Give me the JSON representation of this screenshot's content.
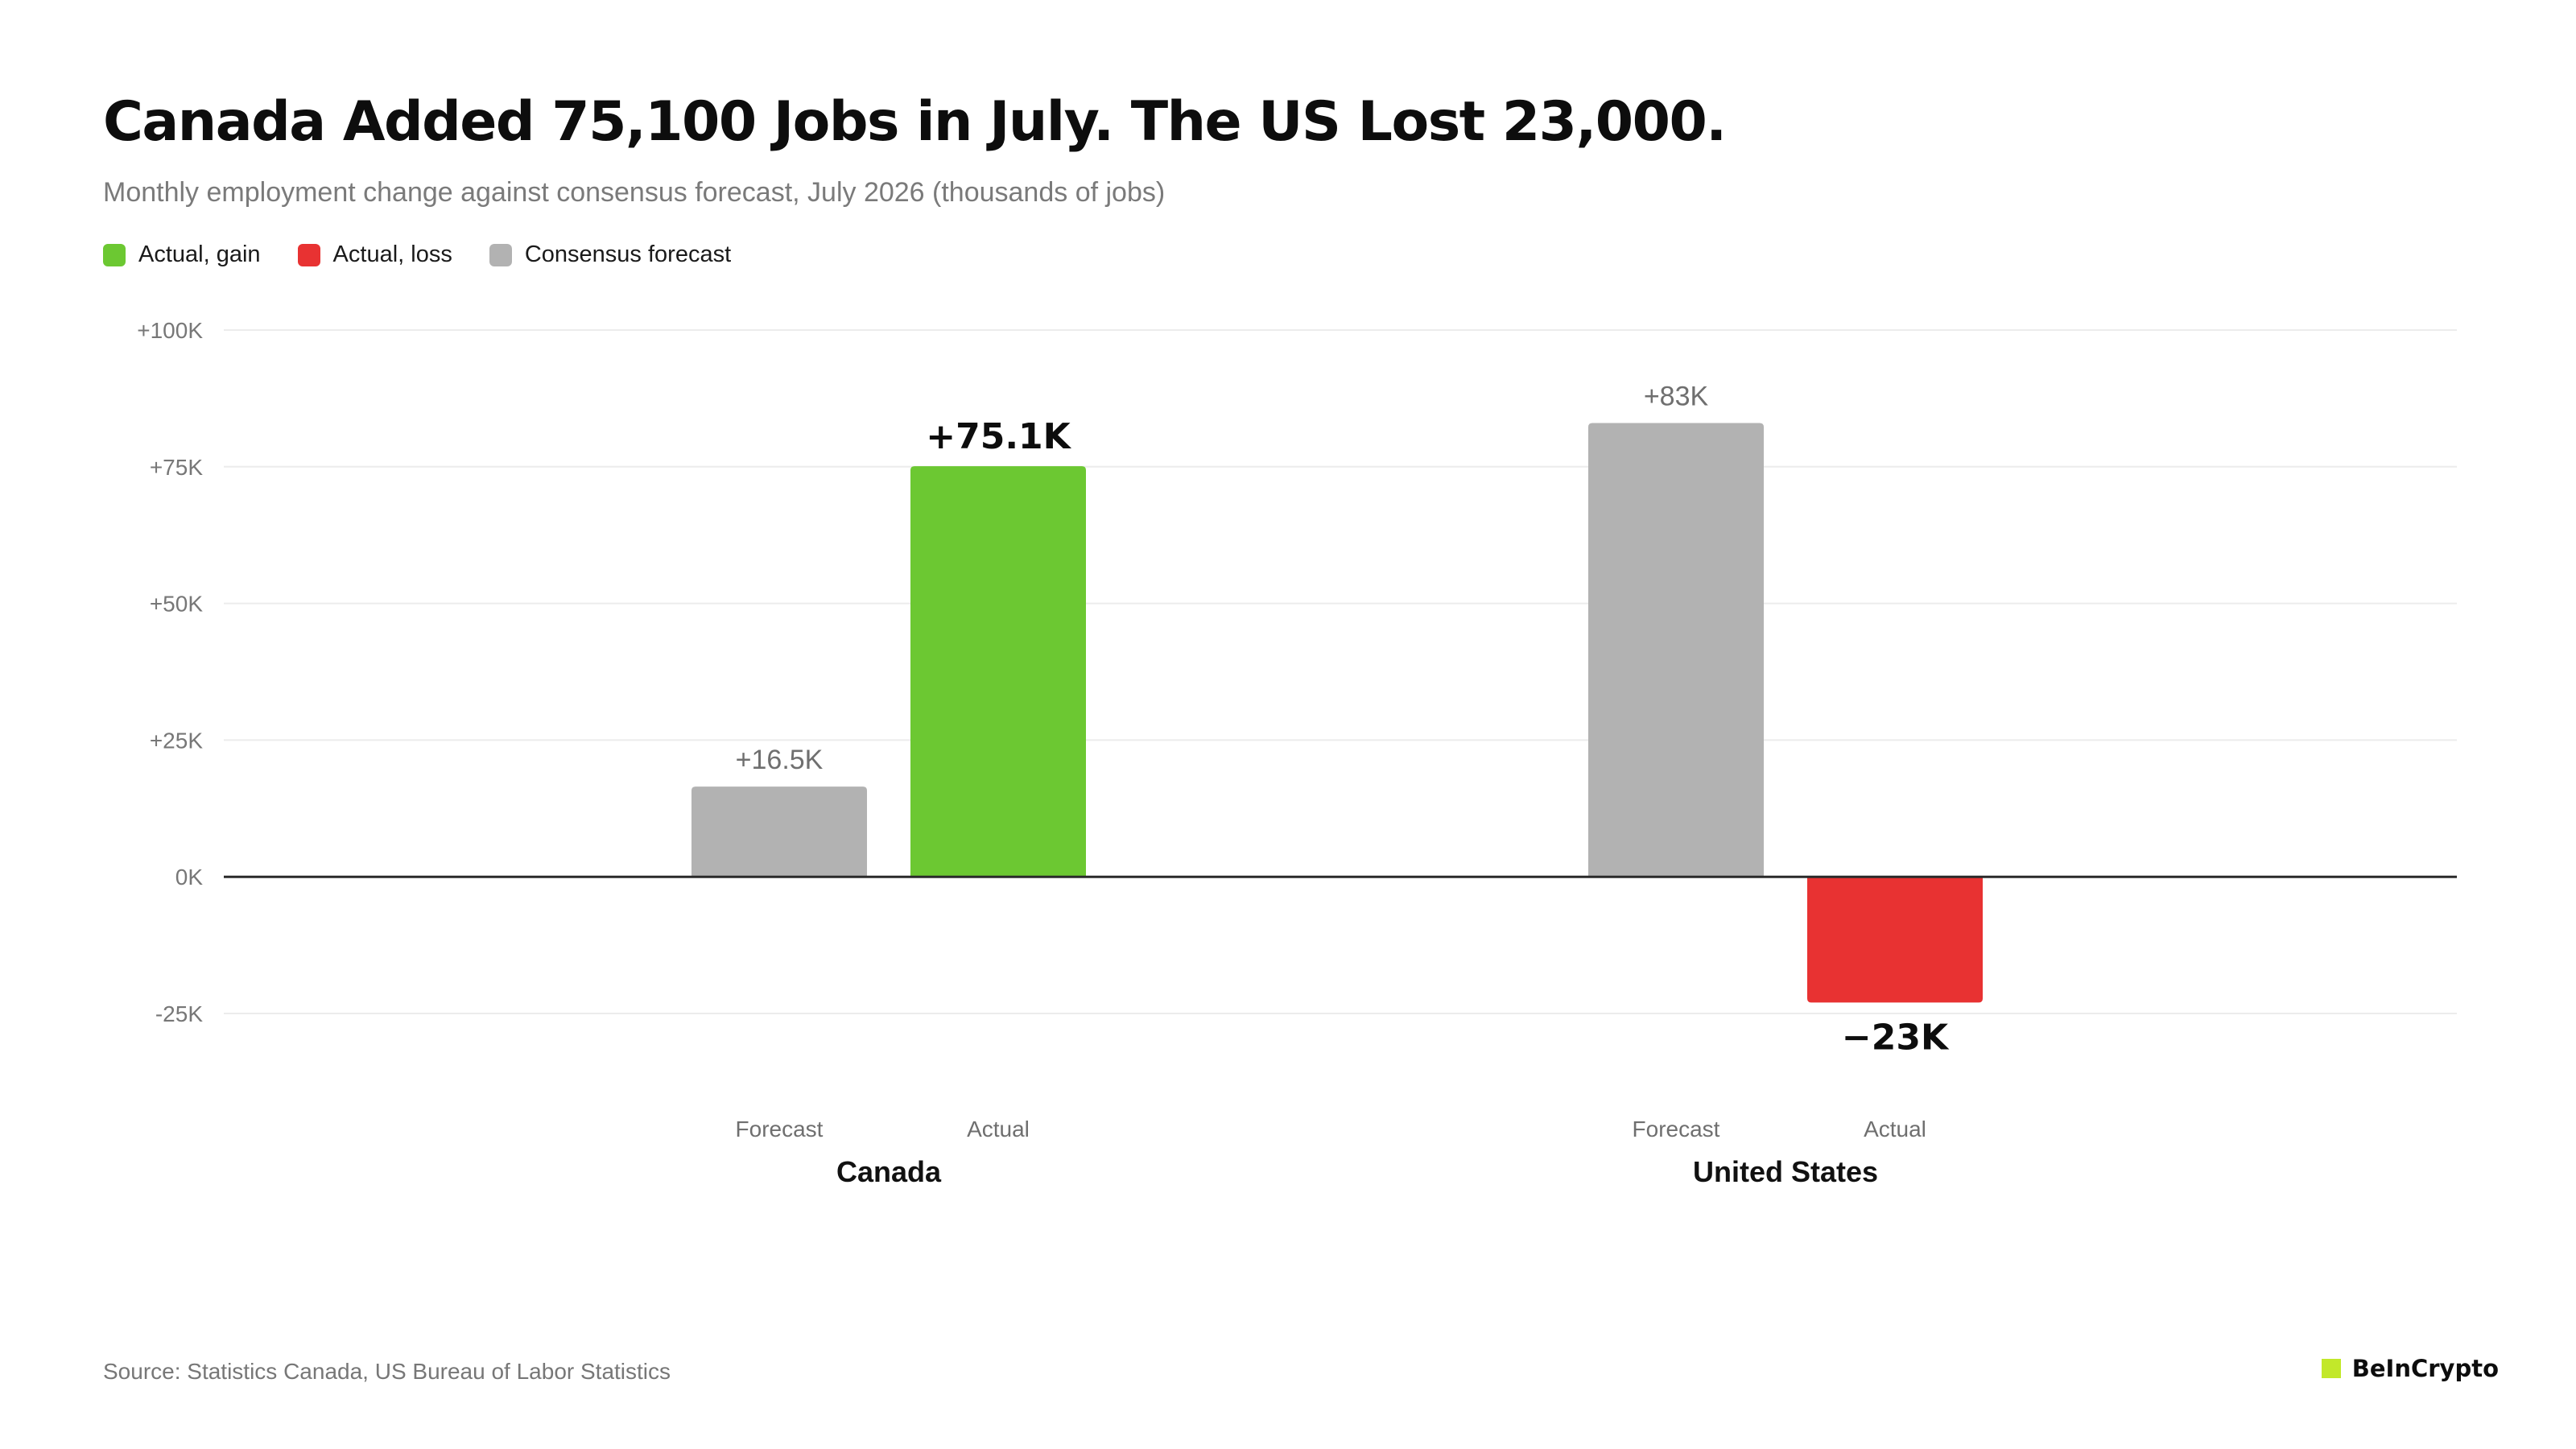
{
  "title": "Canada Added 75,100 Jobs in July. The US Lost 23,000.",
  "subtitle": "Monthly employment change against consensus forecast, July 2026 (thousands of jobs)",
  "legend": [
    {
      "label": "Actual, gain",
      "color": "#6cc832"
    },
    {
      "label": "Actual, loss",
      "color": "#e83232"
    },
    {
      "label": "Consensus forecast",
      "color": "#b2b2b2"
    }
  ],
  "chart_data": {
    "type": "bar",
    "title": "Canada Added 75,100 Jobs in July. The US Lost 23,000.",
    "subtitle": "Monthly employment change against consensus forecast, July 2026 (thousands of jobs)",
    "ylim": [
      -25,
      100
    ],
    "yticks": [
      {
        "value": 100,
        "label": "+100K"
      },
      {
        "value": 75,
        "label": "+75K"
      },
      {
        "value": 50,
        "label": "+50K"
      },
      {
        "value": 25,
        "label": "+25K"
      },
      {
        "value": 0,
        "label": "0K"
      },
      {
        "value": -25,
        "label": "-25K"
      }
    ],
    "grid": true,
    "legend_position": "top-left",
    "groups": [
      {
        "name": "Canada",
        "bars": [
          {
            "sublabel": "Forecast",
            "value": 16.5,
            "label": "+16.5K",
            "kind": "forecast"
          },
          {
            "sublabel": "Actual",
            "value": 75.1,
            "label": "+75.1K",
            "kind": "gain"
          }
        ]
      },
      {
        "name": "United States",
        "bars": [
          {
            "sublabel": "Forecast",
            "value": 83,
            "label": "+83K",
            "kind": "forecast"
          },
          {
            "sublabel": "Actual",
            "value": -23,
            "label": "−23K",
            "kind": "loss"
          }
        ]
      }
    ],
    "colors": {
      "gain": "#6cc832",
      "loss": "#e83232",
      "forecast": "#b2b2b2"
    }
  },
  "footer": {
    "source": "Source: Statistics Canada, US Bureau of Labor Statistics",
    "brand": "BeInCrypto",
    "brand_color": "#c2e82a"
  }
}
